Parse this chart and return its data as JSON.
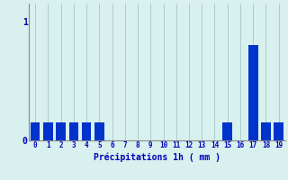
{
  "hours": [
    0,
    1,
    2,
    3,
    4,
    5,
    6,
    7,
    8,
    9,
    10,
    11,
    12,
    13,
    14,
    15,
    16,
    17,
    18,
    19
  ],
  "values": [
    0.15,
    0.15,
    0.15,
    0.15,
    0.15,
    0.15,
    0.0,
    0.0,
    0.0,
    0.0,
    0.0,
    0.0,
    0.0,
    0.0,
    0.0,
    0.15,
    0.0,
    0.8,
    0.15,
    0.15
  ],
  "bar_color": "#0033cc",
  "bg_color": "#d8f0ee",
  "grid_color": "#aacccc",
  "xlabel": "Précipitations 1h ( mm )",
  "xlabel_color": "#0000bb",
  "ytick_labels": [
    "0",
    "1"
  ],
  "ytick_vals": [
    0,
    1
  ],
  "ylim": [
    0,
    1.15
  ],
  "xlim": [
    -0.5,
    19.5
  ],
  "tick_color": "#0000bb",
  "axis_color": "#888888",
  "bar_width": 0.75
}
